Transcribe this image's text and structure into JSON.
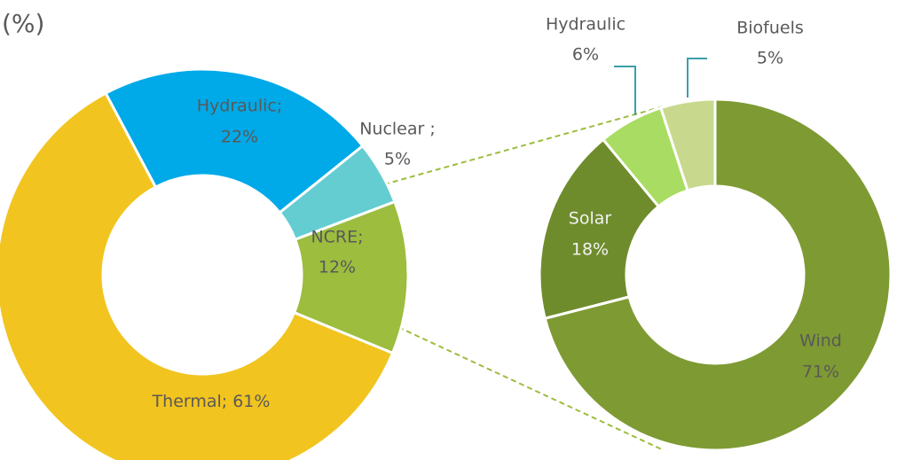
{
  "chart_data": [
    {
      "type": "donut",
      "title": "(%)",
      "categories": [
        "Hydraulic;",
        "Nuclear ;",
        "NCRE;",
        "Thermal;"
      ],
      "values": [
        22,
        5,
        12,
        61
      ],
      "value_labels": [
        "22%",
        "5%",
        "12%",
        "61%"
      ],
      "colors": [
        "#00a9e8",
        "#64cdd2",
        "#9cbd3e",
        "#f2c41f"
      ]
    },
    {
      "type": "donut",
      "categories": [
        "Wind",
        "Solar",
        "Hydraulic",
        "Biofuels"
      ],
      "values": [
        71,
        18,
        6,
        5
      ],
      "value_labels": [
        "71%",
        "18%",
        "6%",
        "5%"
      ],
      "colors": [
        "#7e9a33",
        "#6f8c2c",
        "#a9dc62",
        "#c8d98e"
      ]
    }
  ]
}
